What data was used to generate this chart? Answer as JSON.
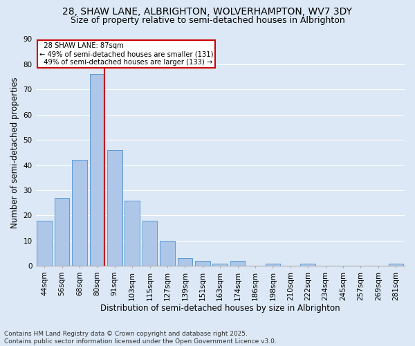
{
  "title_line1": "28, SHAW LANE, ALBRIGHTON, WOLVERHAMPTON, WV7 3DY",
  "title_line2": "Size of property relative to semi-detached houses in Albrighton",
  "xlabel": "Distribution of semi-detached houses by size in Albrighton",
  "ylabel": "Number of semi-detached properties",
  "footnote": "Contains HM Land Registry data © Crown copyright and database right 2025.\nContains public sector information licensed under the Open Government Licence v3.0.",
  "categories": [
    "44sqm",
    "56sqm",
    "68sqm",
    "80sqm",
    "91sqm",
    "103sqm",
    "115sqm",
    "127sqm",
    "139sqm",
    "151sqm",
    "163sqm",
    "174sqm",
    "186sqm",
    "198sqm",
    "210sqm",
    "222sqm",
    "234sqm",
    "245sqm",
    "257sqm",
    "269sqm",
    "281sqm"
  ],
  "values": [
    18,
    27,
    42,
    76,
    46,
    26,
    18,
    10,
    3,
    2,
    1,
    2,
    0,
    1,
    0,
    1,
    0,
    0,
    0,
    0,
    1
  ],
  "bar_color": "#aec6e8",
  "bar_edge_color": "#5b9bd5",
  "highlight_bar_index": 3,
  "property_label": "28 SHAW LANE: 87sqm",
  "pct_smaller": 49,
  "n_smaller": 131,
  "pct_larger": 49,
  "n_larger": 133,
  "annotation_box_color": "#ffffff",
  "annotation_box_edge": "#cc0000",
  "vline_color": "#cc0000",
  "ylim": [
    0,
    90
  ],
  "yticks": [
    0,
    10,
    20,
    30,
    40,
    50,
    60,
    70,
    80,
    90
  ],
  "background_color": "#dce8f5",
  "grid_color": "#ffffff",
  "title_fontsize": 10,
  "subtitle_fontsize": 9,
  "axis_label_fontsize": 8.5,
  "tick_fontsize": 7.5,
  "footnote_fontsize": 6.5
}
